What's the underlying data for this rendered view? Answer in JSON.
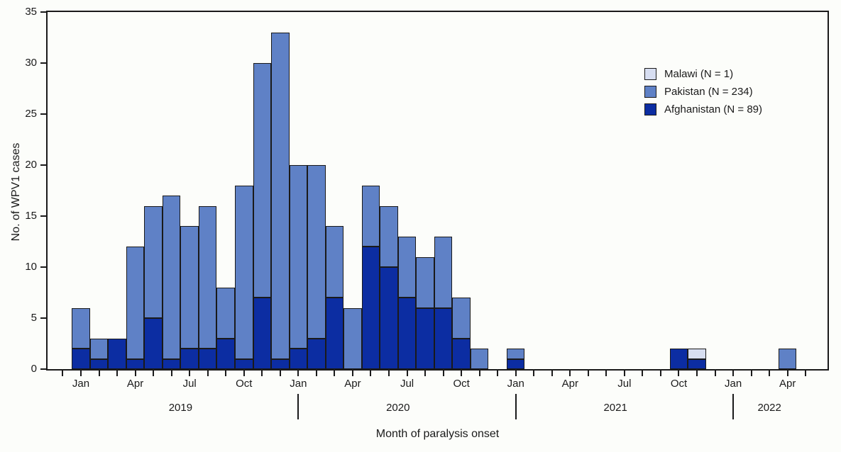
{
  "figure": {
    "y_axis_label": "No. of WPV1 cases",
    "x_axis_label": "Month of paralysis onset"
  },
  "legend": {
    "items": [
      {
        "label": "Malawi (N = 1)",
        "color": "#d7def1"
      },
      {
        "label": "Pakistan (N = 234)",
        "color": "#5f81c6"
      },
      {
        "label": "Afghanistan (N = 89)",
        "color": "#0c2da2"
      }
    ]
  },
  "colors": {
    "malawi": "#d7def1",
    "pakistan": "#5f81c6",
    "afghanistan": "#0c2da2",
    "outline": "#1a1a1a"
  },
  "chart_data": {
    "type": "bar",
    "stacked": true,
    "title": "",
    "xlabel": "Month of paralysis onset",
    "ylabel": "No. of WPV1 cases",
    "ylim": [
      0,
      35
    ],
    "y_ticks": [
      0,
      5,
      10,
      15,
      20,
      25,
      30,
      35
    ],
    "grid": false,
    "legend_position": "upper-right-inside",
    "month_tick_labels": {
      "1": "Jan",
      "4": "Apr",
      "7": "Jul",
      "10": "Oct"
    },
    "year_labels": [
      "2019",
      "2020",
      "2021",
      "2022"
    ],
    "x": [
      "2019-01",
      "2019-02",
      "2019-03",
      "2019-04",
      "2019-05",
      "2019-06",
      "2019-07",
      "2019-08",
      "2019-09",
      "2019-10",
      "2019-11",
      "2019-12",
      "2020-01",
      "2020-02",
      "2020-03",
      "2020-04",
      "2020-05",
      "2020-06",
      "2020-07",
      "2020-08",
      "2020-09",
      "2020-10",
      "2020-11",
      "2020-12",
      "2021-01",
      "2021-02",
      "2021-03",
      "2021-04",
      "2021-05",
      "2021-06",
      "2021-07",
      "2021-08",
      "2021-09",
      "2021-10",
      "2021-11",
      "2021-12",
      "2022-01",
      "2022-02",
      "2022-03",
      "2022-04",
      "2022-05"
    ],
    "stack_order_bottom_to_top": [
      "Afghanistan",
      "Pakistan",
      "Malawi"
    ],
    "series": [
      {
        "name": "Afghanistan",
        "legend_label": "Afghanistan (N = 89)",
        "color": "#0c2da2",
        "values": [
          2,
          1,
          3,
          1,
          5,
          1,
          2,
          2,
          3,
          1,
          7,
          1,
          2,
          3,
          7,
          0,
          12,
          10,
          7,
          6,
          6,
          3,
          0,
          0,
          1,
          0,
          0,
          0,
          0,
          0,
          0,
          0,
          0,
          2,
          1,
          0,
          0,
          0,
          0,
          0,
          0
        ]
      },
      {
        "name": "Pakistan",
        "legend_label": "Pakistan (N = 234)",
        "color": "#5f81c6",
        "values": [
          4,
          2,
          0,
          11,
          11,
          16,
          12,
          14,
          5,
          17,
          23,
          32,
          18,
          17,
          7,
          6,
          6,
          6,
          6,
          5,
          7,
          4,
          2,
          0,
          1,
          0,
          0,
          0,
          0,
          0,
          0,
          0,
          0,
          0,
          0,
          0,
          0,
          0,
          0,
          2,
          0
        ]
      },
      {
        "name": "Malawi",
        "legend_label": "Malawi (N = 1)",
        "color": "#d7def1",
        "values": [
          0,
          0,
          0,
          0,
          0,
          0,
          0,
          0,
          0,
          0,
          0,
          0,
          0,
          0,
          0,
          0,
          0,
          0,
          0,
          0,
          0,
          0,
          0,
          0,
          0,
          0,
          0,
          0,
          0,
          0,
          0,
          0,
          0,
          0,
          1,
          0,
          0,
          0,
          0,
          0,
          0
        ]
      }
    ]
  }
}
